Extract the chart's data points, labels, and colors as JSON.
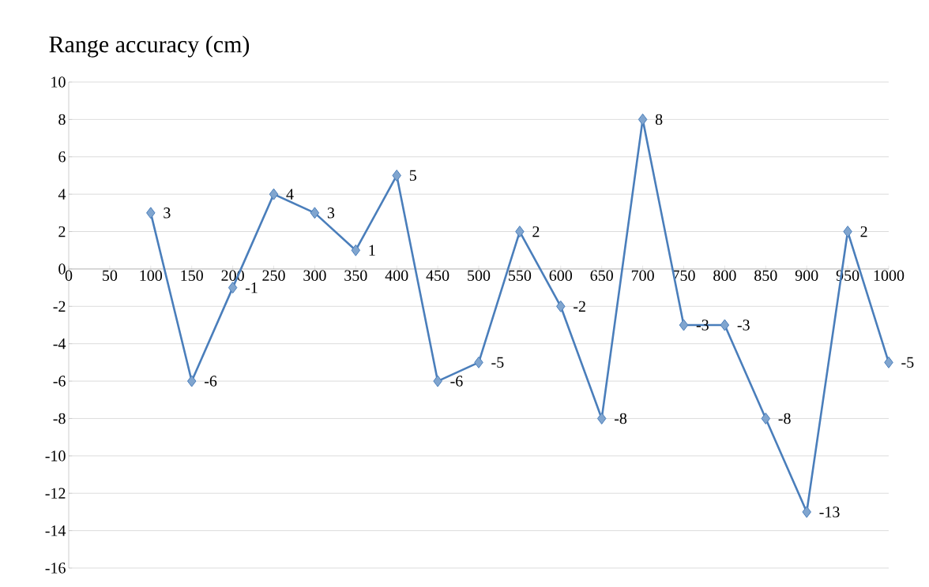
{
  "chart_data": {
    "type": "line",
    "title": "Range accuracy (cm)",
    "x": [
      100,
      150,
      200,
      250,
      300,
      350,
      400,
      450,
      500,
      550,
      600,
      650,
      700,
      750,
      800,
      850,
      900,
      950,
      1000
    ],
    "values": [
      3,
      -6,
      -1,
      4,
      3,
      1,
      5,
      -6,
      -5,
      2,
      -2,
      -8,
      8,
      -3,
      -3,
      -8,
      -13,
      2,
      -5
    ],
    "color": "#4a7ebb",
    "marker": "diamond",
    "line_style": "solid",
    "data_labels": true,
    "grid": "y",
    "xlim": [
      0,
      1000
    ],
    "xticks": [
      0,
      50,
      100,
      150,
      200,
      250,
      300,
      350,
      400,
      450,
      500,
      550,
      600,
      650,
      700,
      750,
      800,
      850,
      900,
      950,
      1000
    ],
    "ylim": [
      -16,
      10
    ],
    "yticks": [
      -16,
      -14,
      -12,
      -10,
      -8,
      -6,
      -4,
      -2,
      0,
      2,
      4,
      6,
      8,
      10
    ]
  }
}
